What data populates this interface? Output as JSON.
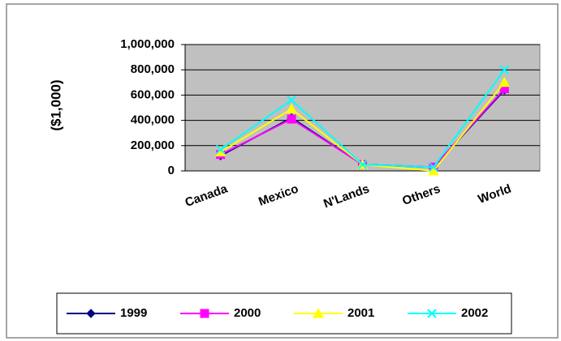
{
  "chart_data": {
    "type": "line",
    "y_label": "($1,000)",
    "categories": [
      "Canada",
      "Mexico",
      "N'Lands",
      "Others",
      "World"
    ],
    "series": [
      {
        "name": "1999",
        "color": "#000080",
        "marker": "diamond",
        "values": [
          120000,
          420000,
          50000,
          30000,
          640000
        ]
      },
      {
        "name": "2000",
        "color": "#ff00ff",
        "marker": "square",
        "values": [
          130000,
          410000,
          50000,
          30000,
          650000
        ]
      },
      {
        "name": "2001",
        "color": "#ffff00",
        "marker": "triangle",
        "values": [
          150000,
          490000,
          50000,
          0,
          700000
        ]
      },
      {
        "name": "2002",
        "color": "#00ffff",
        "marker": "x",
        "values": [
          170000,
          560000,
          50000,
          30000,
          800000
        ]
      }
    ],
    "ylim": [
      0,
      1000000
    ],
    "yticks": [
      0,
      {
        "value": 200000,
        "label": "200,000"
      },
      {
        "value": 400000,
        "label": "400,000"
      },
      {
        "value": 600000,
        "label": "600,000"
      },
      {
        "value": 800000,
        "label": "800,000"
      },
      {
        "value": 1000000,
        "label": "1,000,000"
      }
    ],
    "grid": true,
    "legend": "bottom"
  }
}
